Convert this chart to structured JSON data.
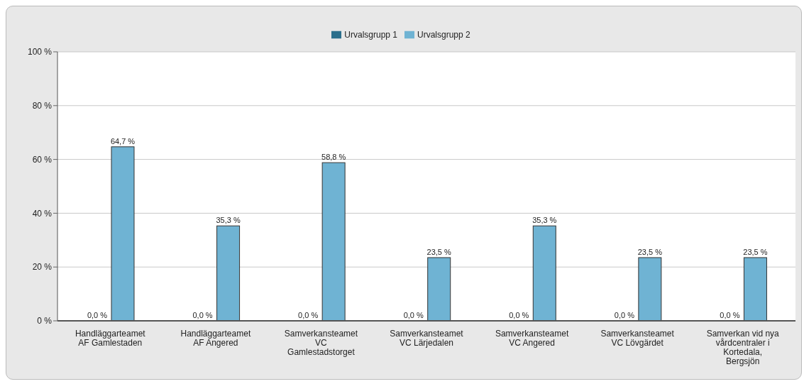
{
  "chart_data": {
    "type": "bar",
    "categories": [
      "Handläggarteamet AF Gamlestaden",
      "Handläggarteamet AF Angered",
      "Samverkansteamet VC Gamlestadstorget",
      "Samverkansteamet VC Lärjedalen",
      "Samverkansteamet VC Angered",
      "Samverkansteamet VC Lövgärdet",
      "Samverkan vid nya vårdcentraler i Kortedala, Bergsjön"
    ],
    "series": [
      {
        "name": "Urvalsgrupp 1",
        "color": "#2b6f8c",
        "values": [
          0,
          0,
          0,
          0,
          0,
          0,
          0
        ],
        "value_labels": [
          "0,0 %",
          "0,0 %",
          "0,0 %",
          "0,0 %",
          "0,0 %",
          "0,0 %",
          "0,0 %"
        ]
      },
      {
        "name": "Urvalsgrupp 2",
        "color": "#6fb3d3",
        "values": [
          64.7,
          35.3,
          58.8,
          23.5,
          35.3,
          23.5,
          23.5
        ],
        "value_labels": [
          "64,7 %",
          "35,3 %",
          "58,8 %",
          "23,5 %",
          "35,3 %",
          "23,5 %",
          "23,5 %"
        ]
      }
    ],
    "ylim": [
      0,
      100
    ],
    "yticks": [
      {
        "value": 0,
        "label": "0 %"
      },
      {
        "value": 20,
        "label": "20 %"
      },
      {
        "value": 40,
        "label": "40 %"
      },
      {
        "value": 60,
        "label": "60 %"
      },
      {
        "value": 80,
        "label": "80 %"
      },
      {
        "value": 100,
        "label": "100 %"
      }
    ],
    "grid": "y",
    "legend": "top"
  }
}
